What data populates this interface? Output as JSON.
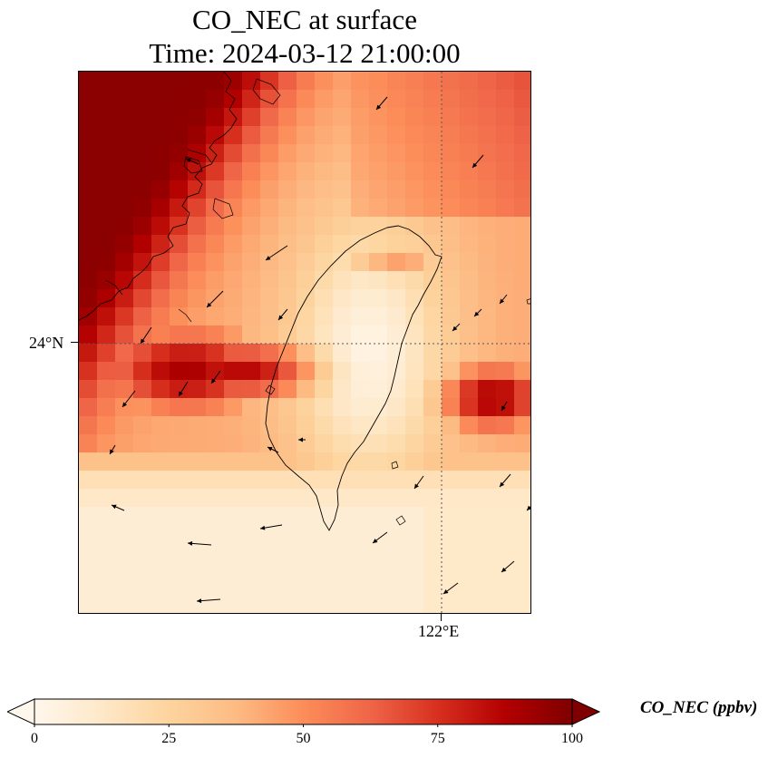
{
  "title": {
    "line1": "CO_NEC at surface",
    "line2": "Time: 2024-03-12 21:00:00"
  },
  "axes": {
    "lat_tick": "24°N",
    "lon_tick": "122°E",
    "gridlines": "dotted"
  },
  "colorbar": {
    "label": "CO_NEC (ppbv)",
    "colormap": "OrRd",
    "ticks": [
      "0",
      "25",
      "50",
      "75",
      "100"
    ],
    "range": [
      0,
      100
    ],
    "extend": "both",
    "colors": [
      "#fff7ec",
      "#fee8c8",
      "#fdd49e",
      "#fdbb84",
      "#fc8d59",
      "#ef6548",
      "#d7301f",
      "#b30000",
      "#7f0000"
    ]
  },
  "map": {
    "region": "Taiwan and Taiwan Strait",
    "features": [
      "coastline",
      "wind-vectors",
      "concentration-field"
    ]
  }
}
